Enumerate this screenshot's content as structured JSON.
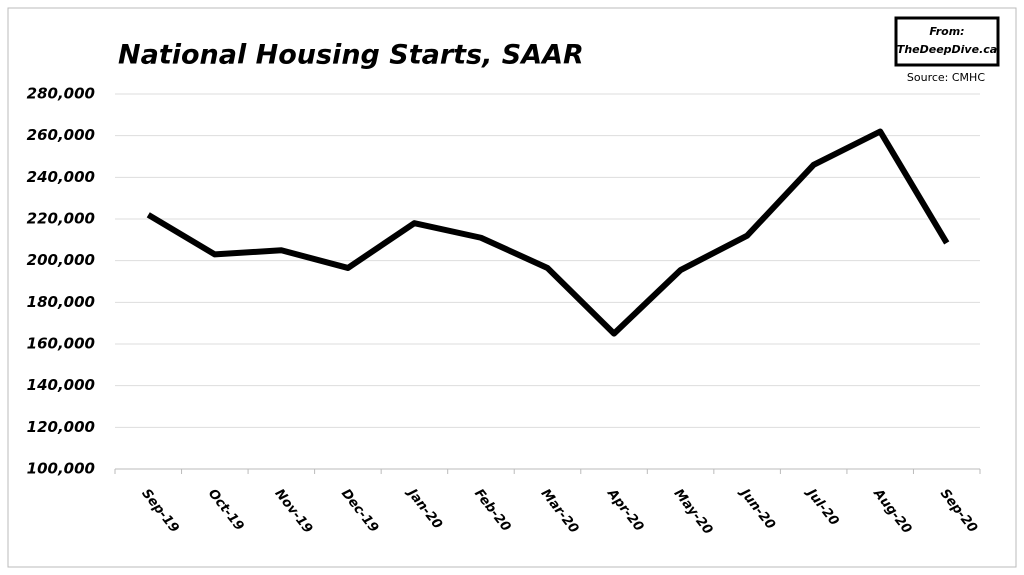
{
  "chart_data": {
    "type": "line",
    "title": "National Housing Starts, SAAR",
    "source": "Source: CMHC",
    "badge": [
      "From:",
      "TheDeepDive.ca"
    ],
    "categories": [
      "Sep-19",
      "Oct-19",
      "Nov-19",
      "Dec-19",
      "Jan-20",
      "Feb-20",
      "Mar-20",
      "Apr-20",
      "May-20",
      "Jun-20",
      "Jul-20",
      "Aug-20",
      "Sep-20"
    ],
    "values": [
      222000,
      203000,
      205000,
      196500,
      218000,
      211000,
      196500,
      165000,
      195500,
      212000,
      246000,
      262000,
      208500
    ],
    "color": "#000000",
    "ylim": [
      100000,
      280000
    ],
    "yticks": [
      {
        "value": 100000,
        "label": "100,000"
      },
      {
        "value": 120000,
        "label": "120,000"
      },
      {
        "value": 140000,
        "label": "140,000"
      },
      {
        "value": 160000,
        "label": "160,000"
      },
      {
        "value": 180000,
        "label": "180,000"
      },
      {
        "value": 200000,
        "label": "200,000"
      },
      {
        "value": 220000,
        "label": "220,000"
      },
      {
        "value": 240000,
        "label": "240,000"
      },
      {
        "value": 260000,
        "label": "260,000"
      },
      {
        "value": 280000,
        "label": "280,000"
      }
    ],
    "grid": true
  }
}
